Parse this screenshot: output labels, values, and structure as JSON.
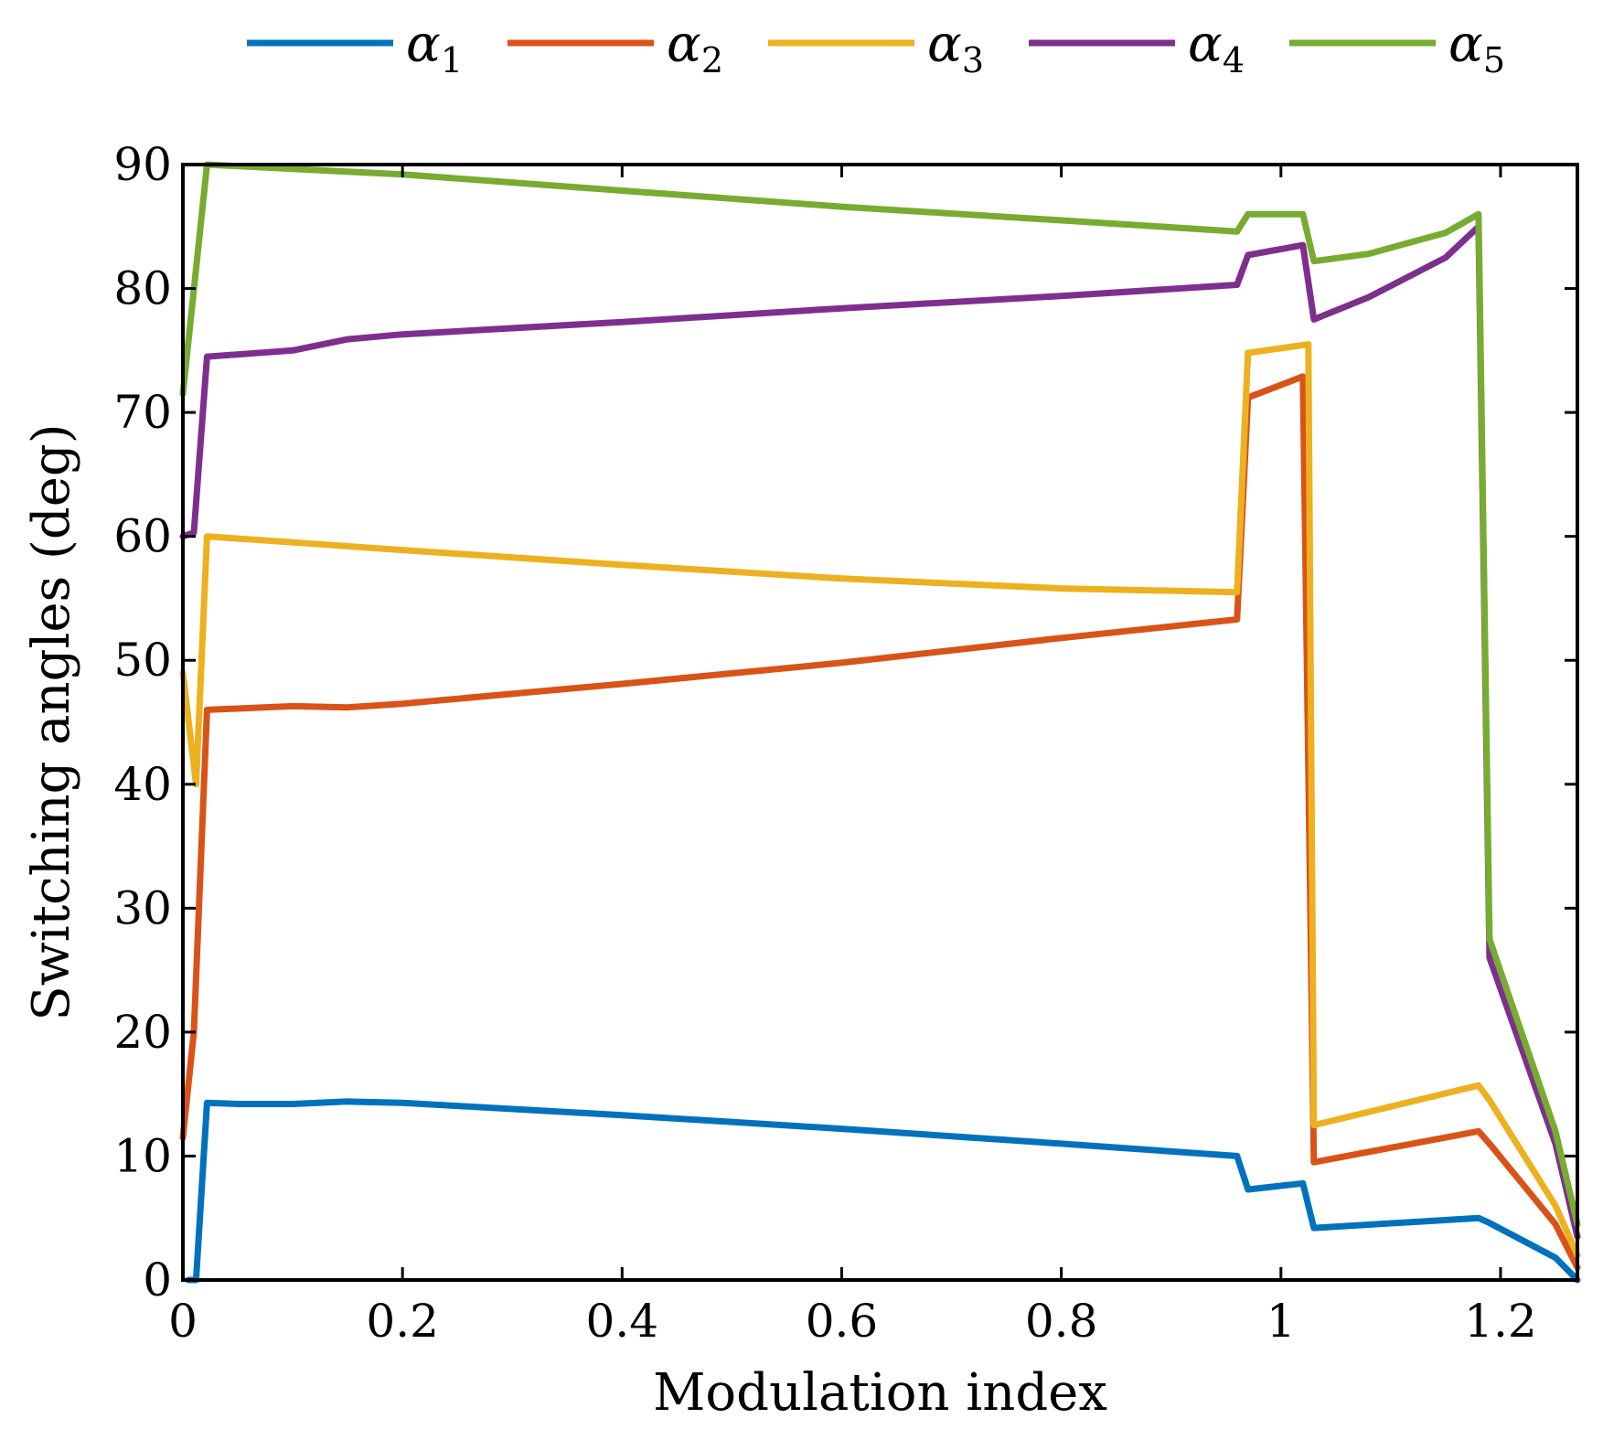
{
  "chart_data": {
    "type": "line",
    "title": "",
    "xlabel": "Modulation index",
    "ylabel": "Switching angles (deg)",
    "xlim": [
      0,
      1.27
    ],
    "ylim": [
      0,
      90
    ],
    "xticks": [
      0,
      0.2,
      0.4,
      0.6,
      0.8,
      1,
      1.2
    ],
    "xtick_labels": [
      "0",
      "0.2",
      "0.4",
      "0.6",
      "0.8",
      "1",
      "1.2"
    ],
    "yticks": [
      0,
      10,
      20,
      30,
      40,
      50,
      60,
      70,
      80,
      90
    ],
    "ytick_labels": [
      "0",
      "10",
      "20",
      "30",
      "40",
      "50",
      "60",
      "70",
      "80",
      "90"
    ],
    "grid": false,
    "legend_position": "top (above plot, horizontal)",
    "series": [
      {
        "name": "α1",
        "symbol": "α",
        "subscript": "1",
        "color": "#0072BD",
        "x": [
          0.005,
          0.012,
          0.022,
          0.05,
          0.1,
          0.15,
          0.2,
          0.4,
          0.6,
          0.8,
          0.96,
          0.97,
          1.02,
          1.03,
          1.18,
          1.19,
          1.25,
          1.27
        ],
        "y": [
          0,
          0,
          14.3,
          14.2,
          14.2,
          14.4,
          14.3,
          13.3,
          12.2,
          11.0,
          10.0,
          7.3,
          7.8,
          4.2,
          5.0,
          4.6,
          1.8,
          0
        ]
      },
      {
        "name": "α2",
        "symbol": "α",
        "subscript": "2",
        "color": "#D95319",
        "x": [
          0,
          0.01,
          0.022,
          0.1,
          0.15,
          0.2,
          0.4,
          0.6,
          0.8,
          0.96,
          0.97,
          1.02,
          1.03,
          1.18,
          1.19,
          1.25,
          1.27
        ],
        "y": [
          11.5,
          20.0,
          46.0,
          46.3,
          46.2,
          46.5,
          48.1,
          49.8,
          51.8,
          53.3,
          71.2,
          72.9,
          9.5,
          12.0,
          11.0,
          4.5,
          1.0
        ]
      },
      {
        "name": "α3",
        "symbol": "α",
        "subscript": "3",
        "color": "#EDB120",
        "x": [
          0,
          0.012,
          0.022,
          0.2,
          0.4,
          0.6,
          0.8,
          0.96,
          0.97,
          1.025,
          1.03,
          1.18,
          1.19,
          1.25,
          1.27
        ],
        "y": [
          49.0,
          40.0,
          60.0,
          58.9,
          57.7,
          56.6,
          55.8,
          55.5,
          74.8,
          75.5,
          12.5,
          15.7,
          14.5,
          6.0,
          2.0
        ]
      },
      {
        "name": "α4",
        "symbol": "α",
        "subscript": "4",
        "color": "#7E2F8E",
        "x": [
          0,
          0.01,
          0.022,
          0.1,
          0.15,
          0.2,
          0.4,
          0.6,
          0.8,
          0.96,
          0.97,
          1.02,
          1.03,
          1.08,
          1.15,
          1.18,
          1.19,
          1.25,
          1.27
        ],
        "y": [
          60.0,
          60.3,
          74.5,
          75.0,
          75.9,
          76.3,
          77.3,
          78.4,
          79.4,
          80.3,
          82.7,
          83.5,
          77.5,
          79.3,
          82.5,
          85.0,
          26.0,
          11.0,
          3.5
        ]
      },
      {
        "name": "α5",
        "symbol": "α",
        "subscript": "5",
        "color": "#77AC30",
        "x": [
          0,
          0.022,
          0.2,
          0.4,
          0.6,
          0.8,
          0.96,
          0.97,
          1.02,
          1.03,
          1.08,
          1.15,
          1.18,
          1.19,
          1.25,
          1.27
        ],
        "y": [
          71.5,
          90.0,
          89.2,
          87.9,
          86.6,
          85.5,
          84.6,
          86.0,
          86.0,
          82.2,
          82.8,
          84.5,
          86.0,
          27.5,
          12.0,
          4.5
        ]
      }
    ]
  }
}
